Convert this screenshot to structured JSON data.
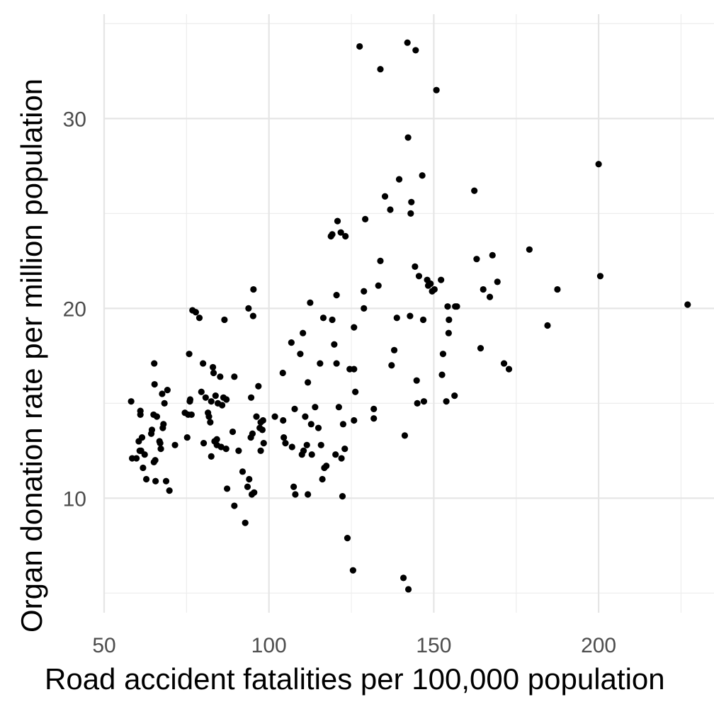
{
  "chart_data": {
    "type": "scatter",
    "xlabel": "Road accident fatalities per 100,000 population",
    "ylabel": "Organ donation rate per million population",
    "xlim": [
      50,
      235
    ],
    "ylim": [
      4.9,
      35.5
    ],
    "x_ticks": [
      50,
      100,
      150,
      200
    ],
    "y_ticks": [
      10,
      20,
      30
    ],
    "grid": true,
    "point_color": "#000000",
    "points": [
      [
        58.2,
        15.1
      ],
      [
        58.5,
        12.1
      ],
      [
        59.8,
        12.1
      ],
      [
        60.5,
        13.0
      ],
      [
        60.8,
        12.5
      ],
      [
        61.0,
        14.6
      ],
      [
        61.0,
        14.4
      ],
      [
        61.2,
        12.5
      ],
      [
        61.5,
        13.2
      ],
      [
        61.8,
        11.6
      ],
      [
        62.3,
        12.3
      ],
      [
        62.8,
        11.0
      ],
      [
        64.3,
        13.4
      ],
      [
        64.5,
        13.6
      ],
      [
        65.0,
        14.4
      ],
      [
        65.1,
        11.9
      ],
      [
        65.2,
        17.1
      ],
      [
        65.3,
        16.0
      ],
      [
        65.5,
        12.0
      ],
      [
        65.6,
        10.9
      ],
      [
        66.0,
        14.3
      ],
      [
        66.8,
        13.0
      ],
      [
        67.0,
        12.9
      ],
      [
        67.2,
        12.6
      ],
      [
        67.6,
        15.5
      ],
      [
        67.8,
        13.7
      ],
      [
        68.0,
        13.9
      ],
      [
        68.3,
        15.0
      ],
      [
        68.8,
        10.9
      ],
      [
        69.2,
        15.7
      ],
      [
        69.8,
        10.4
      ],
      [
        71.5,
        12.8
      ],
      [
        74.5,
        14.5
      ],
      [
        75.2,
        13.2
      ],
      [
        75.5,
        14.4
      ],
      [
        75.8,
        17.6
      ],
      [
        76.0,
        15.1
      ],
      [
        76.1,
        15.2
      ],
      [
        76.5,
        14.4
      ],
      [
        76.8,
        19.9
      ],
      [
        77.8,
        19.8
      ],
      [
        78.9,
        19.5
      ],
      [
        79.5,
        15.6
      ],
      [
        80.0,
        17.1
      ],
      [
        80.2,
        12.9
      ],
      [
        80.8,
        15.3
      ],
      [
        81.8,
        14.3
      ],
      [
        81.5,
        14.5
      ],
      [
        82.2,
        14.0
      ],
      [
        82.5,
        15.1
      ],
      [
        82.5,
        12.2
      ],
      [
        83.0,
        16.9
      ],
      [
        83.2,
        16.6
      ],
      [
        83.5,
        13.0
      ],
      [
        83.8,
        15.4
      ],
      [
        84.2,
        13.1
      ],
      [
        84.2,
        12.8
      ],
      [
        84.5,
        15.0
      ],
      [
        85.2,
        16.4
      ],
      [
        85.5,
        12.7
      ],
      [
        85.8,
        14.9
      ],
      [
        86.2,
        15.3
      ],
      [
        86.5,
        19.4
      ],
      [
        87.0,
        12.6
      ],
      [
        87.1,
        15.2
      ],
      [
        87.3,
        10.5
      ],
      [
        89.0,
        13.5
      ],
      [
        89.5,
        9.6
      ],
      [
        89.5,
        16.4
      ],
      [
        90.8,
        12.5
      ],
      [
        92.0,
        11.4
      ],
      [
        92.8,
        8.7
      ],
      [
        93.5,
        10.6
      ],
      [
        93.8,
        20.0
      ],
      [
        94.0,
        11.0
      ],
      [
        94.5,
        13.2
      ],
      [
        94.6,
        15.3
      ],
      [
        94.8,
        10.2
      ],
      [
        95.0,
        13.4
      ],
      [
        95.2,
        19.6
      ],
      [
        95.3,
        21.0
      ],
      [
        95.5,
        10.3
      ],
      [
        96.2,
        14.3
      ],
      [
        96.8,
        15.9
      ],
      [
        97.2,
        13.7
      ],
      [
        97.5,
        12.5
      ],
      [
        97.5,
        14.0
      ],
      [
        98.0,
        13.6
      ],
      [
        98.2,
        14.1
      ],
      [
        98.4,
        12.9
      ],
      [
        101.8,
        14.3
      ],
      [
        104.2,
        16.6
      ],
      [
        104.3,
        14.1
      ],
      [
        104.5,
        13.2
      ],
      [
        105.0,
        12.9
      ],
      [
        106.8,
        18.2
      ],
      [
        107.0,
        12.7
      ],
      [
        107.5,
        10.6
      ],
      [
        107.8,
        14.7
      ],
      [
        108.0,
        10.2
      ],
      [
        109.5,
        17.6
      ],
      [
        110.0,
        12.3
      ],
      [
        110.3,
        18.7
      ],
      [
        110.5,
        12.5
      ],
      [
        111.0,
        14.3
      ],
      [
        111.5,
        12.8
      ],
      [
        111.8,
        16.1
      ],
      [
        111.8,
        10.2
      ],
      [
        112.5,
        20.3
      ],
      [
        112.8,
        13.9
      ],
      [
        113.0,
        12.3
      ],
      [
        114.0,
        14.8
      ],
      [
        115.0,
        13.7
      ],
      [
        115.5,
        17.1
      ],
      [
        115.8,
        12.8
      ],
      [
        116.2,
        11.0
      ],
      [
        116.5,
        19.5
      ],
      [
        116.8,
        11.6
      ],
      [
        117.4,
        11.7
      ],
      [
        118.8,
        23.8
      ],
      [
        119.2,
        23.9
      ],
      [
        119.2,
        19.4
      ],
      [
        119.8,
        18.1
      ],
      [
        120.2,
        12.3
      ],
      [
        120.5,
        17.1
      ],
      [
        120.5,
        20.7
      ],
      [
        120.8,
        24.6
      ],
      [
        121.2,
        14.8
      ],
      [
        121.8,
        24.0
      ],
      [
        122.0,
        12.1
      ],
      [
        122.3,
        10.1
      ],
      [
        122.5,
        13.9
      ],
      [
        123.0,
        12.6
      ],
      [
        123.2,
        23.8
      ],
      [
        123.8,
        7.9
      ],
      [
        124.5,
        16.8
      ],
      [
        125.5,
        6.2
      ],
      [
        125.8,
        16.8
      ],
      [
        125.8,
        14.1
      ],
      [
        125.8,
        19.0
      ],
      [
        126.2,
        15.6
      ],
      [
        127.5,
        33.8
      ],
      [
        128.8,
        20.0
      ],
      [
        128.8,
        20.9
      ],
      [
        129.2,
        24.7
      ],
      [
        131.8,
        14.7
      ],
      [
        131.8,
        14.2
      ],
      [
        133.2,
        21.2
      ],
      [
        133.8,
        32.6
      ],
      [
        133.8,
        22.5
      ],
      [
        135.2,
        25.9
      ],
      [
        136.8,
        25.2
      ],
      [
        137.2,
        17.0
      ],
      [
        138.0,
        17.8
      ],
      [
        138.8,
        19.5
      ],
      [
        139.5,
        26.8
      ],
      [
        140.8,
        5.8
      ],
      [
        141.2,
        13.3
      ],
      [
        142.0,
        34.0
      ],
      [
        142.2,
        29.0
      ],
      [
        142.3,
        5.2
      ],
      [
        142.8,
        19.6
      ],
      [
        143.0,
        25.0
      ],
      [
        143.2,
        25.6
      ],
      [
        144.3,
        22.2
      ],
      [
        144.5,
        33.6
      ],
      [
        144.8,
        16.2
      ],
      [
        145.0,
        15.0
      ],
      [
        145.5,
        21.7
      ],
      [
        146.5,
        27.0
      ],
      [
        146.8,
        19.4
      ],
      [
        147.0,
        15.1
      ],
      [
        148.0,
        21.5
      ],
      [
        148.3,
        21.2
      ],
      [
        149.0,
        21.3
      ],
      [
        149.5,
        20.9
      ],
      [
        150.2,
        21.0
      ],
      [
        150.8,
        31.5
      ],
      [
        152.2,
        21.5
      ],
      [
        152.5,
        16.5
      ],
      [
        152.8,
        17.6
      ],
      [
        153.8,
        15.1
      ],
      [
        154.2,
        20.1
      ],
      [
        154.5,
        18.7
      ],
      [
        154.6,
        19.4
      ],
      [
        156.5,
        20.1
      ],
      [
        156.3,
        15.4
      ],
      [
        157.0,
        20.1
      ],
      [
        162.3,
        26.2
      ],
      [
        163.0,
        22.6
      ],
      [
        164.2,
        17.9
      ],
      [
        165.0,
        21.0
      ],
      [
        167.0,
        20.6
      ],
      [
        167.8,
        22.8
      ],
      [
        169.3,
        21.4
      ],
      [
        171.3,
        17.1
      ],
      [
        172.8,
        16.8
      ],
      [
        179.0,
        23.1
      ],
      [
        184.5,
        19.1
      ],
      [
        187.5,
        21.0
      ],
      [
        200.0,
        27.6
      ],
      [
        200.5,
        21.7
      ],
      [
        227.0,
        20.2
      ]
    ]
  }
}
